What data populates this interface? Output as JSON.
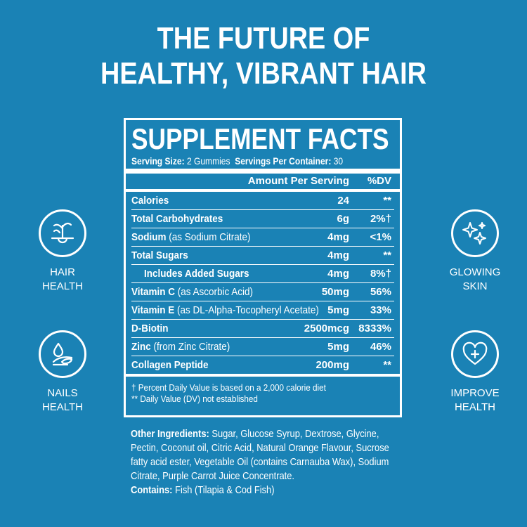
{
  "headline": {
    "line1": "THE FUTURE OF",
    "line2": "HEALTHY, VIBRANT HAIR"
  },
  "facts": {
    "title": "SUPPLEMENT FACTS",
    "serving_size_label": "Serving Size:",
    "serving_size_value": " 2 Gummies",
    "servings_label": "Servings Per Container:",
    "servings_value": " 30",
    "col_amount": "Amount Per Serving",
    "col_dv": "%DV",
    "rows": [
      {
        "name": "Calories",
        "sub": "",
        "amount": "24",
        "dv": "**"
      },
      {
        "name": "Total Carbohydrates",
        "sub": "",
        "amount": "6g",
        "dv": "2%†"
      },
      {
        "name": "Sodium",
        "sub": " (as Sodium Citrate)",
        "amount": "4mg",
        "dv": "<1%"
      },
      {
        "name": "Total Sugars",
        "sub": "",
        "amount": "4mg",
        "dv": "**"
      },
      {
        "name": "Includes Added Sugars",
        "sub": "",
        "amount": "4mg",
        "dv": "8%†"
      },
      {
        "name": "Vitamin C",
        "sub": " (as Ascorbic Acid)",
        "amount": "50mg",
        "dv": "56%"
      },
      {
        "name": "Vitamin E",
        "sub": " (as DL-Alpha-Tocopheryl Acetate)",
        "amount": "5mg",
        "dv": "33%"
      },
      {
        "name": "D-Biotin",
        "sub": "",
        "amount": "2500mcg",
        "dv": "8333%"
      },
      {
        "name": "Zinc",
        "sub": " (from Zinc Citrate)",
        "amount": "5mg",
        "dv": "46%"
      },
      {
        "name": "Collagen Peptide",
        "sub": "",
        "amount": "200mg",
        "dv": "**"
      }
    ],
    "note1": "† Percent Daily Value is based on a 2,000 calorie diet",
    "note2": "** Daily Value (DV) not established"
  },
  "ingredients": {
    "other_label": "Other Ingredients:",
    "other_text": " Sugar, Glucose Syrup, Dextrose, Glycine, Pectin, Coconut oil, Citric Acid, Natural Orange Flavour, Sucrose fatty acid ester, Vegetable Oil (contains Carnauba Wax), Sodium Citrate, Purple Carrot Juice Concentrate.",
    "contains_label": "Contains:",
    "contains_text": " Fish (Tilapia & Cod Fish)"
  },
  "badges": {
    "hair": {
      "line1": "HAIR",
      "line2": "HEALTH",
      "icon": "hair-follicle-icon"
    },
    "nails": {
      "line1": "NAILS",
      "line2": "HEALTH",
      "icon": "nail-drop-icon"
    },
    "skin": {
      "line1": "GLOWING",
      "line2": "SKIN",
      "icon": "sparkle-icon"
    },
    "improve": {
      "line1": "IMPROVE",
      "line2": "HEALTH",
      "icon": "heart-plus-icon"
    }
  },
  "colors": {
    "background": "#1a82b5",
    "foreground": "#ffffff"
  }
}
